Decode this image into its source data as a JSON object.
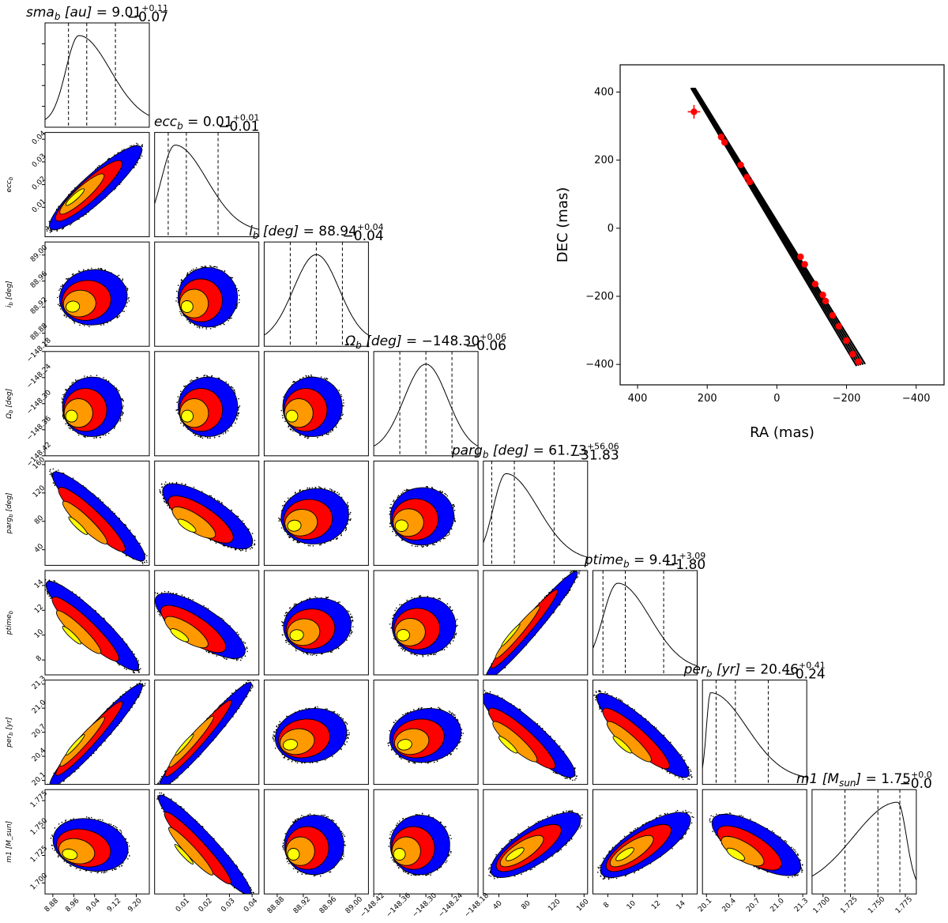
{
  "colors": {
    "level1": "#0000ff",
    "level2": "#ff0000",
    "level3": "#ff9900",
    "level4": "#ffff00",
    "outline": "#000000",
    "orbit_point": "#ff0000"
  },
  "chart_data": [
    {
      "type": "corner",
      "parameters": [
        {
          "key": "sma",
          "title": "sma_b [au] = 9.01 +0.11 -0.07",
          "title_main": "sma",
          "title_sub": "b",
          "title_unit": " [au]",
          "title_value": " = 9.01",
          "title_plus": "+0.11",
          "title_minus": "−0.07",
          "ylabel": "",
          "ylabel_main": "",
          "ylabel_sub": "",
          "ylabel_unit": "",
          "range": [
            8.85,
            9.25
          ],
          "ticks": [
            "8.88",
            "8.96",
            "9.04",
            "9.12",
            "9.20"
          ],
          "tick_values": [
            8.88,
            8.96,
            9.04,
            9.12,
            9.2
          ],
          "median": 9.01,
          "lower": 8.94,
          "upper": 9.12,
          "hist_peak": 8.98,
          "hist_width_left": 0.05,
          "hist_width_right": 0.12
        },
        {
          "key": "ecc",
          "title": "ecc_b = 0.01 +0.01 -0.01",
          "title_main": "ecc",
          "title_sub": "b",
          "title_unit": "",
          "title_value": " = 0.01",
          "title_plus": "+0.01",
          "title_minus": "−0.01",
          "ylabel": "ecc_b",
          "ylabel_main": "ecc",
          "ylabel_sub": "b",
          "ylabel_unit": "",
          "range": [
            -0.003,
            0.043
          ],
          "ticks": [
            "0.01",
            "0.02",
            "0.03",
            "0.04"
          ],
          "tick_values": [
            0.01,
            0.02,
            0.03,
            0.04
          ],
          "median": 0.011,
          "lower": 0.003,
          "upper": 0.025,
          "hist_peak": 0.006,
          "hist_width_left": 0.006,
          "hist_width_right": 0.014
        },
        {
          "key": "inc",
          "title": "i_b [deg] = 88.94 +0.04 -0.04",
          "title_main": "i",
          "title_sub": "b",
          "title_unit": " [deg]",
          "title_value": " = 88.94",
          "title_plus": "+0.04",
          "title_minus": "−0.04",
          "ylabel": "i_b [deg]",
          "ylabel_main": "i",
          "ylabel_sub": "b",
          "ylabel_unit": " [deg]",
          "range": [
            88.86,
            89.02
          ],
          "ticks": [
            "88.88",
            "88.92",
            "88.96",
            "89.00"
          ],
          "tick_values": [
            88.88,
            88.92,
            88.96,
            89.0
          ],
          "median": 88.94,
          "lower": 88.9,
          "upper": 88.98,
          "hist_peak": 88.94,
          "hist_width_left": 0.035,
          "hist_width_right": 0.035
        },
        {
          "key": "Omega",
          "title": "Ω_b [deg] = -148.30 +0.06 -0.06",
          "title_main": "Ω",
          "title_sub": "b",
          "title_unit": " [deg]",
          "title_value": " = −148.30",
          "title_plus": "+0.06",
          "title_minus": "−0.06",
          "ylabel": "Ω_b [deg]",
          "ylabel_main": "Ω",
          "ylabel_sub": "b",
          "ylabel_unit": " [deg]",
          "range": [
            -148.42,
            -148.18
          ],
          "ticks": [
            "−148.42",
            "−148.36",
            "−148.30",
            "−148.24",
            "−148.18"
          ],
          "tick_values": [
            -148.42,
            -148.36,
            -148.3,
            -148.24,
            -148.18
          ],
          "median": -148.3,
          "lower": -148.36,
          "upper": -148.24,
          "hist_peak": -148.3,
          "hist_width_left": 0.05,
          "hist_width_right": 0.05
        },
        {
          "key": "parg",
          "title": "parg_b [deg] = 61.73 +56.06 -31.83",
          "title_main": "parg",
          "title_sub": "b",
          "title_unit": " [deg]",
          "title_value": " = 61.73",
          "title_plus": "+56.06",
          "title_minus": "−31.83",
          "ylabel": "parg_b [deg]",
          "ylabel_main": "parg",
          "ylabel_sub": "b",
          "ylabel_unit": " [deg]",
          "range": [
            18,
            165
          ],
          "ticks": [
            "40",
            "80",
            "120",
            "160"
          ],
          "tick_values": [
            40,
            80,
            120,
            160
          ],
          "median": 61.73,
          "lower": 29.9,
          "upper": 117.79,
          "hist_peak": 50,
          "hist_width_left": 18,
          "hist_width_right": 45
        },
        {
          "key": "ptime",
          "title": "ptime_b = 9.41 +3.09 -1.80",
          "title_main": "ptime",
          "title_sub": "b",
          "title_unit": "",
          "title_value": " = 9.41",
          "title_plus": "+3.09",
          "title_minus": "−1.80",
          "ylabel": "ptime_b",
          "ylabel_main": "ptime",
          "ylabel_sub": "b",
          "ylabel_unit": "",
          "range": [
            6.8,
            15.2
          ],
          "ticks": [
            "8",
            "10",
            "12",
            "14"
          ],
          "tick_values": [
            8,
            10,
            12,
            14
          ],
          "median": 9.41,
          "lower": 7.61,
          "upper": 12.5,
          "hist_peak": 8.8,
          "hist_width_left": 1.2,
          "hist_width_right": 2.6
        },
        {
          "key": "per",
          "title": "per_b [yr] = 20.46 +0.41 -0.24",
          "title_main": "per",
          "title_sub": "b",
          "title_unit": " [yr]",
          "title_value": " = 20.46",
          "title_plus": "+0.41",
          "title_minus": "−0.24",
          "ylabel": "per_b [yr]",
          "ylabel_main": "per",
          "ylabel_sub": "b",
          "ylabel_unit": " [yr]",
          "range": [
            20.05,
            21.35
          ],
          "ticks": [
            "20.1",
            "20.4",
            "20.7",
            "21.0",
            "21.3"
          ],
          "tick_values": [
            20.1,
            20.4,
            20.7,
            21.0,
            21.3
          ],
          "median": 20.46,
          "lower": 20.22,
          "upper": 20.87,
          "hist_peak": 20.15,
          "hist_width_left": 0.05,
          "hist_width_right": 0.45
        },
        {
          "key": "m1",
          "title": "m1 [M_sun] = 1.75 +0.0… -0.0…",
          "title_main": "m1",
          "title_sub": "",
          "title_unit": " [M",
          "title_unit_sub": "sun",
          "title_unit_end": "]",
          "title_value": " = 1.75",
          "title_plus": "+0.0",
          "title_minus": "−0.0",
          "ylabel": "m1 [M_sun]",
          "ylabel_main": "m1",
          "ylabel_sub": "",
          "ylabel_unit": " [M_sun]",
          "range": [
            1.69,
            1.785
          ],
          "ticks": [
            "1.700",
            "1.725",
            "1.750",
            "1.775"
          ],
          "tick_values": [
            1.7,
            1.725,
            1.75,
            1.775
          ],
          "median": 1.75,
          "lower": 1.72,
          "upper": 1.77,
          "hist_peak": 1.768,
          "hist_width_left": 0.04,
          "hist_width_right": 0.008
        }
      ],
      "contour_levels": [
        "blue",
        "red",
        "orange",
        "yellow"
      ]
    },
    {
      "type": "scatter",
      "xlabel": "RA (mas)",
      "ylabel": "DEC (mas)",
      "xlim": [
        450,
        -480
      ],
      "ylim": [
        -460,
        480
      ],
      "xticks": [
        400,
        200,
        0,
        -200,
        -400
      ],
      "yticks": [
        400,
        200,
        0,
        -200,
        -400
      ],
      "xtick_labels": [
        "400",
        "200",
        "0",
        "−200",
        "−400"
      ],
      "ytick_labels": [
        "400",
        "200",
        "0",
        "−200",
        "−400"
      ],
      "orbit_line": {
        "start": [
          240,
          410
        ],
        "end": [
          -240,
          -400
        ]
      },
      "points": [
        {
          "x": 238,
          "y": 342,
          "xerr": 18,
          "yerr": 20
        },
        {
          "x": 160,
          "y": 268,
          "xerr": 4,
          "yerr": 4
        },
        {
          "x": 150,
          "y": 252,
          "xerr": 4,
          "yerr": 4
        },
        {
          "x": 104,
          "y": 186,
          "xerr": 4,
          "yerr": 4
        },
        {
          "x": 86,
          "y": 150,
          "xerr": 4,
          "yerr": 4
        },
        {
          "x": 78,
          "y": 136,
          "xerr": 4,
          "yerr": 4
        },
        {
          "x": -68,
          "y": -84,
          "xerr": 4,
          "yerr": 4
        },
        {
          "x": -80,
          "y": -106,
          "xerr": 4,
          "yerr": 4
        },
        {
          "x": -110,
          "y": -164,
          "xerr": 4,
          "yerr": 4
        },
        {
          "x": -132,
          "y": -196,
          "xerr": 4,
          "yerr": 4
        },
        {
          "x": -140,
          "y": -214,
          "xerr": 4,
          "yerr": 4
        },
        {
          "x": -160,
          "y": -256,
          "xerr": 4,
          "yerr": 4
        },
        {
          "x": -178,
          "y": -288,
          "xerr": 4,
          "yerr": 4
        },
        {
          "x": -200,
          "y": -330,
          "xerr": 4,
          "yerr": 4
        },
        {
          "x": -218,
          "y": -370,
          "xerr": 4,
          "yerr": 4
        },
        {
          "x": -234,
          "y": -392,
          "xerr": 8,
          "yerr": 8
        }
      ]
    }
  ]
}
